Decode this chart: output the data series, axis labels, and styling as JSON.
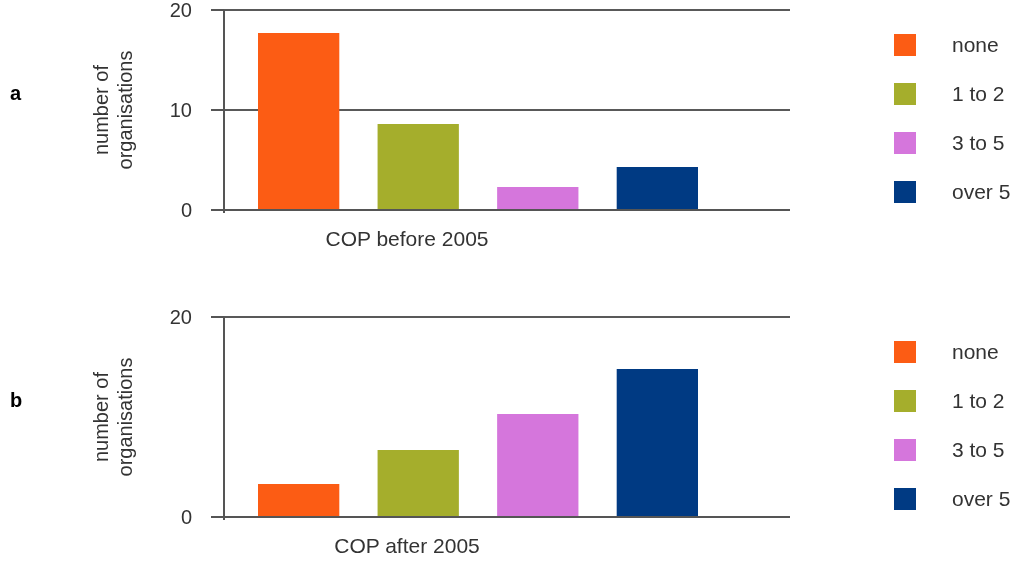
{
  "chart_data": [
    {
      "type": "bar",
      "annotations": [
        "a"
      ],
      "xlabel": "COP before 2005",
      "ylabel": "number of organisations",
      "categories": [
        null
      ],
      "series": [
        {
          "name": "none",
          "color": "#fc5c14",
          "values": [
            17.7
          ]
        },
        {
          "name": "1 to 2",
          "color": "#a5ae2c",
          "values": [
            8.6
          ]
        },
        {
          "name": "3 to 5",
          "color": "#d576dc",
          "values": [
            2.3
          ]
        },
        {
          "name": "over 5",
          "color": "#003a83",
          "values": [
            4.3
          ]
        }
      ],
      "ylim": [
        0,
        20
      ],
      "yticks": [
        0,
        10,
        20
      ],
      "grid": "y",
      "legend": "right"
    },
    {
      "type": "bar",
      "annotations": [
        "b"
      ],
      "xlabel": "COP after 2005",
      "ylabel": "number of organisations",
      "categories": [
        null
      ],
      "series": [
        {
          "name": "none",
          "color": "#fc5c14",
          "values": [
            3.3
          ]
        },
        {
          "name": "1 to 2",
          "color": "#a5ae2c",
          "values": [
            6.7
          ]
        },
        {
          "name": "3 to 5",
          "color": "#d576dc",
          "values": [
            10.3
          ]
        },
        {
          "name": "over 5",
          "color": "#003a83",
          "values": [
            14.8
          ]
        }
      ],
      "ylim": [
        0,
        20
      ],
      "yticks": [
        0,
        20
      ],
      "grid": "y",
      "legend": "right"
    }
  ]
}
